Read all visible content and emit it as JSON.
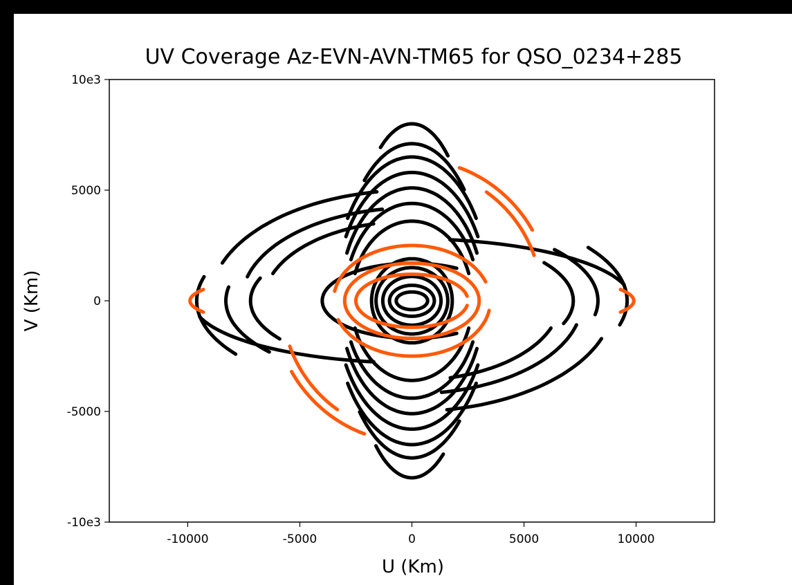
{
  "chart_data": {
    "type": "scatter",
    "title": "UV Coverage Az-EVN-AVN-TM65 for QSO_0234+285",
    "xlabel": "U (Km)",
    "ylabel": "V (Km)",
    "xlim": [
      -13500,
      13500
    ],
    "ylim": [
      -10000,
      10000
    ],
    "xticks": [
      -10000,
      -5000,
      0,
      5000,
      10000
    ],
    "xtick_labels": [
      "-10000",
      "-5000",
      "0",
      "5000",
      "10000"
    ],
    "yticks": [
      -10000,
      -5000,
      0,
      5000,
      10000
    ],
    "ytick_labels": [
      "-10e3",
      "-5000",
      "0",
      "5000",
      "10e3"
    ],
    "grid": false,
    "colors": {
      "black": "#000000",
      "orange": "#ff5a0a"
    },
    "series": [
      {
        "color": "black",
        "tracks": [
          {
            "a": 9000,
            "b": 5000,
            "t0": 100,
            "t1": 160
          },
          {
            "a": 9000,
            "b": 5000,
            "t0": 280,
            "t1": 340
          },
          {
            "a": 7600,
            "b": 4200,
            "t0": 100,
            "t1": 165
          },
          {
            "a": 7600,
            "b": 4200,
            "t0": 280,
            "t1": 345
          },
          {
            "a": 6600,
            "b": 3600,
            "t0": 105,
            "t1": 160
          },
          {
            "a": 6600,
            "b": 3600,
            "t0": 285,
            "t1": 340
          },
          {
            "a": 9600,
            "b": 4200,
            "t0": 165,
            "t1": 215
          },
          {
            "a": 9600,
            "b": 4200,
            "t0": 345,
            "t1": 395
          },
          {
            "a": 8300,
            "b": 3600,
            "t0": 170,
            "t1": 220
          },
          {
            "a": 8300,
            "b": 3600,
            "t0": 350,
            "t1": 400
          },
          {
            "a": 7200,
            "b": 3000,
            "t0": 160,
            "t1": 215
          },
          {
            "a": 7200,
            "b": 3000,
            "t0": 340,
            "t1": 395
          },
          {
            "a": 9800,
            "b": 2800,
            "t0": 15,
            "t1": 80
          },
          {
            "a": 9800,
            "b": 2800,
            "t0": 195,
            "t1": 260
          },
          {
            "a": 2800,
            "b": 8000,
            "t0": 55,
            "t1": 120
          },
          {
            "a": 2800,
            "b": 8000,
            "t0": 235,
            "t1": 300
          },
          {
            "a": 3300,
            "b": 7100,
            "t0": 45,
            "t1": 130
          },
          {
            "a": 3300,
            "b": 7100,
            "t0": 225,
            "t1": 310
          },
          {
            "a": 3500,
            "b": 6500,
            "t0": 35,
            "t1": 145
          },
          {
            "a": 3500,
            "b": 6500,
            "t0": 215,
            "t1": 325
          },
          {
            "a": 3400,
            "b": 5800,
            "t0": 30,
            "t1": 150
          },
          {
            "a": 3400,
            "b": 5800,
            "t0": 210,
            "t1": 330
          },
          {
            "a": 3200,
            "b": 5100,
            "t0": 25,
            "t1": 155
          },
          {
            "a": 3200,
            "b": 5100,
            "t0": 205,
            "t1": 335
          },
          {
            "a": 3000,
            "b": 4400,
            "t0": 25,
            "t1": 155
          },
          {
            "a": 3000,
            "b": 4400,
            "t0": 205,
            "t1": 335
          },
          {
            "a": 2700,
            "b": 3600,
            "t0": 20,
            "t1": 160
          },
          {
            "a": 2700,
            "b": 3600,
            "t0": 200,
            "t1": 340
          },
          {
            "a": 4000,
            "b": 1700,
            "t0": 60,
            "t1": 300
          },
          {
            "a": 1800,
            "b": 1900,
            "t0": 0,
            "t1": 360
          },
          {
            "a": 1600,
            "b": 1500,
            "t0": 0,
            "t1": 360
          },
          {
            "a": 1300,
            "b": 1100,
            "t0": 0,
            "t1": 360
          },
          {
            "a": 1000,
            "b": 700,
            "t0": 0,
            "t1": 360
          },
          {
            "a": 700,
            "b": 400,
            "t0": 0,
            "t1": 360
          }
        ]
      },
      {
        "color": "orange",
        "tracks": [
          {
            "a": 9900,
            "b": 1500,
            "t0": 340,
            "t1": 380
          },
          {
            "a": 9900,
            "b": 1500,
            "t0": 160,
            "t1": 200
          },
          {
            "a": 6200,
            "b": 6400,
            "t0": 30,
            "t1": 70
          },
          {
            "a": 6200,
            "b": 6400,
            "t0": 210,
            "t1": 250
          },
          {
            "a": 5800,
            "b": 6000,
            "t0": 20,
            "t1": 55
          },
          {
            "a": 5800,
            "b": 6000,
            "t0": 200,
            "t1": 235
          },
          {
            "a": 3500,
            "b": 2500,
            "t0": 20,
            "t1": 170
          },
          {
            "a": 3500,
            "b": 2500,
            "t0": 200,
            "t1": 350
          },
          {
            "a": 3000,
            "b": 1700,
            "t0": 0,
            "t1": 360
          },
          {
            "a": 2500,
            "b": 1200,
            "t0": 10,
            "t1": 350
          }
        ]
      }
    ]
  }
}
